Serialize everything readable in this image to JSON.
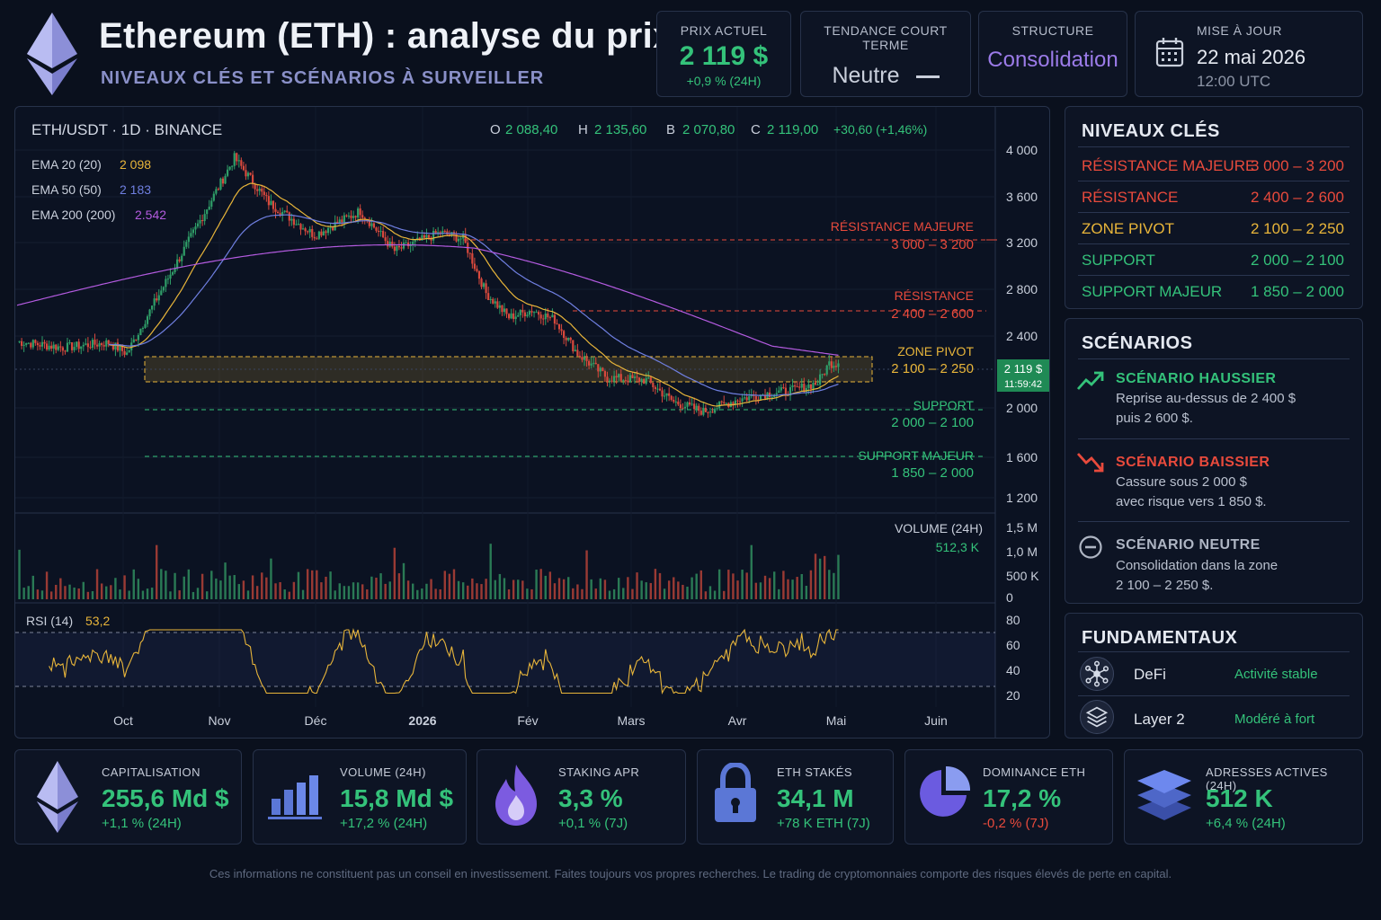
{
  "header": {
    "title": "Ethereum (ETH) : analyse du prix",
    "subtitle": "NIVEAUX CLÉS ET SCÉNARIOS À SURVEILLER",
    "price_card": {
      "label": "PRIX ACTUEL",
      "value": "2 119 $",
      "change": "+0,9 % (24H)"
    },
    "trend_card": {
      "label": "TENDANCE COURT TERME",
      "value": "Neutre"
    },
    "structure_card": {
      "label": "STRUCTURE",
      "value": "Consolidation"
    },
    "update_card": {
      "label": "MISE À JOUR",
      "date": "22 mai 2026",
      "time": "12:00 UTC"
    }
  },
  "chart": {
    "symbol": "ETH/USDT · 1D · BINANCE",
    "ohlc": {
      "o_label": "O",
      "o": "2 088,40",
      "h_label": "H",
      "h": "2 135,60",
      "l_label": "B",
      "l": "2 070,80",
      "c_label": "C",
      "c": "2 119,00",
      "change": "+30,60 (+1,46%)"
    },
    "indicators": [
      {
        "label": "EMA 20 (20)",
        "value": "2 098",
        "color": "#e8b53a"
      },
      {
        "label": "EMA 50 (50)",
        "value": "2 183",
        "color": "#6f7fe0"
      },
      {
        "label": "EMA 200 (200)",
        "value": "2.542",
        "color": "#b45be0"
      }
    ],
    "price_ticks": [
      "4 000",
      "3 600",
      "3 200",
      "2 800",
      "2 400",
      "2 000",
      "1 600",
      "1 200"
    ],
    "current_price_tag": "2 119 $",
    "countdown": "11:59:42",
    "levels": [
      {
        "name": "RÉSISTANCE MAJEURE",
        "range": "3 000 – 3 200",
        "color": "#e84a3c"
      },
      {
        "name": "RÉSISTANCE",
        "range": "2 400 – 2 600",
        "color": "#e84a3c"
      },
      {
        "name": "ZONE PIVOT",
        "range": "2 100 – 2 250",
        "color": "#e8b53a"
      },
      {
        "name": "SUPPORT",
        "range": "2 000 – 2 100",
        "color": "#34c27a"
      },
      {
        "name": "SUPPORT MAJEUR",
        "range": "1 850 – 2 000",
        "color": "#34c27a"
      }
    ],
    "volume": {
      "label": "VOLUME (24H)",
      "value": "512,3 K",
      "ticks": [
        "1,5 M",
        "1,0 M",
        "500 K",
        "0"
      ]
    },
    "rsi": {
      "label": "RSI (14)",
      "value": "53,2",
      "ticks": [
        "80",
        "60",
        "40",
        "20"
      ]
    },
    "months": [
      "Oct",
      "Nov",
      "Déc",
      "2026",
      "Fév",
      "Mars",
      "Avr",
      "Mai",
      "Juin"
    ]
  },
  "levels_panel": {
    "title": "NIVEAUX CLÉS",
    "rows": [
      {
        "name": "RÉSISTANCE MAJEURE",
        "range": "3 000 – 3 200",
        "color": "#e84a3c"
      },
      {
        "name": "RÉSISTANCE",
        "range": "2 400 – 2 600",
        "color": "#e84a3c"
      },
      {
        "name": "ZONE PIVOT",
        "range": "2 100 – 2 250",
        "color": "#e8b53a"
      },
      {
        "name": "SUPPORT",
        "range": "2 000 – 2 100",
        "color": "#34c27a"
      },
      {
        "name": "SUPPORT MAJEUR",
        "range": "1 850 – 2 000",
        "color": "#34c27a"
      }
    ]
  },
  "scenarios": {
    "title": "SCÉNARIOS",
    "bull": {
      "title": "SCÉNARIO HAUSSIER",
      "line1": "Reprise au-dessus de 2 400 $",
      "line2": "puis 2 600 $."
    },
    "bear": {
      "title": "SCÉNARIO BAISSIER",
      "line1": "Cassure sous 2 000 $",
      "line2": "avec risque vers 1 850 $."
    },
    "neutral": {
      "title": "SCÉNARIO NEUTRE",
      "line1": "Consolidation dans la zone",
      "line2": "2 100 – 2 250 $."
    }
  },
  "fundamentals": {
    "title": "FUNDAMENTAUX",
    "items": [
      {
        "name": "DeFi",
        "value": "Activité stable",
        "icon": "network-icon"
      },
      {
        "name": "Layer 2",
        "value": "Modéré à fort",
        "icon": "layers-icon"
      }
    ]
  },
  "stats": [
    {
      "label": "CAPITALISATION",
      "value": "255,6 Md $",
      "change": "+1,1 % (24H)",
      "change_color": "#34c27a",
      "icon": "ethereum-icon"
    },
    {
      "label": "VOLUME (24H)",
      "value": "15,8 Md $",
      "change": "+17,2 % (24H)",
      "change_color": "#34c27a",
      "icon": "bar-chart-icon"
    },
    {
      "label": "STAKING APR",
      "value": "3,3 %",
      "change": "+0,1 % (7J)",
      "change_color": "#34c27a",
      "icon": "flame-icon"
    },
    {
      "label": "ETH STAKÉS",
      "value": "34,1 M",
      "change": "+78 K ETH (7J)",
      "change_color": "#34c27a",
      "icon": "lock-icon"
    },
    {
      "label": "DOMINANCE ETH",
      "value": "17,2 %",
      "change": "-0,2 % (7J)",
      "change_color": "#e84a3c",
      "icon": "pie-chart-icon"
    },
    {
      "label": "ADRESSES ACTIVES (24H)",
      "value": "512 K",
      "change": "+6,4 % (24H)",
      "change_color": "#34c27a",
      "icon": "layers-icon"
    }
  ],
  "disclaimer": "Ces informations ne constituent pas un conseil en investissement. Faites toujours vos propres recherches. Le trading de cryptomonnaies comporte des risques élevés de perte en capital.",
  "chart_data": {
    "type": "candlestick",
    "series": [
      {
        "name": "ETH/USDT",
        "key_points": [
          [
            0,
            2300
          ],
          [
            20,
            2250
          ],
          [
            40,
            2290
          ],
          [
            48,
            2200
          ],
          [
            60,
            2620
          ],
          [
            80,
            3300
          ],
          [
            95,
            3820
          ],
          [
            110,
            3450
          ],
          [
            130,
            3180
          ],
          [
            150,
            3380
          ],
          [
            165,
            3050
          ],
          [
            185,
            3200
          ],
          [
            195,
            3150
          ],
          [
            205,
            2700
          ],
          [
            215,
            2500
          ],
          [
            225,
            2560
          ],
          [
            235,
            2480
          ],
          [
            245,
            2200
          ],
          [
            258,
            2000
          ],
          [
            275,
            1980
          ],
          [
            287,
            1800
          ],
          [
            300,
            1720
          ],
          [
            315,
            1820
          ],
          [
            325,
            1860
          ],
          [
            340,
            1900
          ],
          [
            350,
            1960
          ],
          [
            355,
            2119
          ]
        ]
      },
      {
        "name": "EMA 20 (20)",
        "value": 2098
      },
      {
        "name": "EMA 50 (50)",
        "value": 2183
      },
      {
        "name": "EMA 200 (200)",
        "value": 2542
      }
    ],
    "ylim": [
      1200,
      4000
    ],
    "x_ticks": [
      "Oct",
      "Nov",
      "Déc",
      "2026",
      "Fév",
      "Mars",
      "Avr",
      "Mai",
      "Juin"
    ],
    "rsi_range": [
      20,
      80
    ],
    "rsi_levels": [
      70,
      30
    ],
    "current_price": 2119
  },
  "colors": {
    "up": "#2f9e68",
    "down": "#d8493d",
    "accent_green": "#34c27a",
    "accent_red": "#e84a3c",
    "accent_yellow": "#e8b53a",
    "accent_purple": "#9b7be8"
  }
}
